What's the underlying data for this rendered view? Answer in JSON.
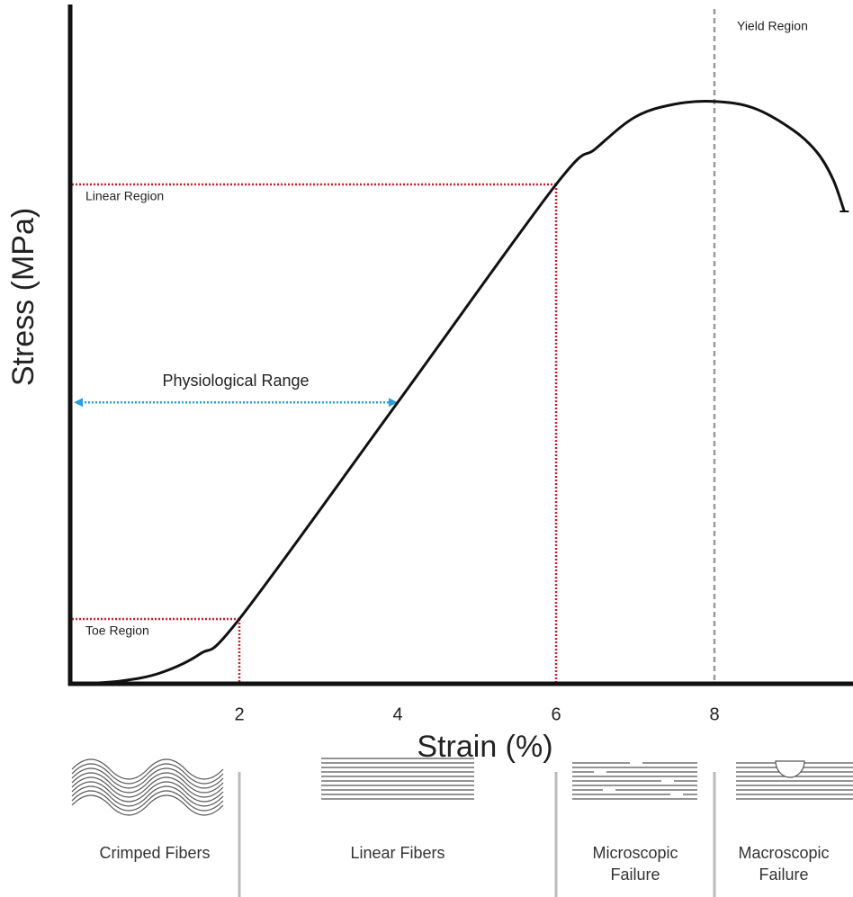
{
  "chart_data": {
    "type": "line",
    "x_label": "Strain (%)",
    "y_label": "Stress (MPa)",
    "x": [
      0,
      0.5,
      1,
      1.5,
      2,
      4,
      6,
      6.5,
      7,
      7.5,
      8,
      8.5,
      9,
      9.3,
      9.5,
      9.64
    ],
    "values": [
      0,
      0.4,
      1.6,
      4.4,
      9.6,
      41.7,
      74,
      79.3,
      84,
      85.9,
      86.3,
      85.3,
      82,
      78.7,
      74.7,
      70
    ],
    "color": "#111111",
    "xlim": [
      0,
      9.75
    ],
    "ylim": [
      0,
      100
    ],
    "xticks": [
      2,
      4,
      6,
      8
    ],
    "reference_lines": [
      {
        "label": "Toe Region",
        "x": 2,
        "y": 9.6,
        "color": "#d0202a"
      },
      {
        "label": "Linear Region",
        "x": 6,
        "y": 74,
        "color": "#d0202a"
      }
    ],
    "vline": {
      "label": "Yield Region",
      "x": 8,
      "color": "#999999"
    },
    "range": {
      "label": "Physiological Range",
      "x": [
        0,
        4
      ],
      "y": 41.7,
      "color": "#2a9fd8"
    },
    "phases": [
      "Crimped Fibers",
      "Linear Fibers",
      "Microscopic Failure",
      "Macroscopic Failure"
    ]
  }
}
